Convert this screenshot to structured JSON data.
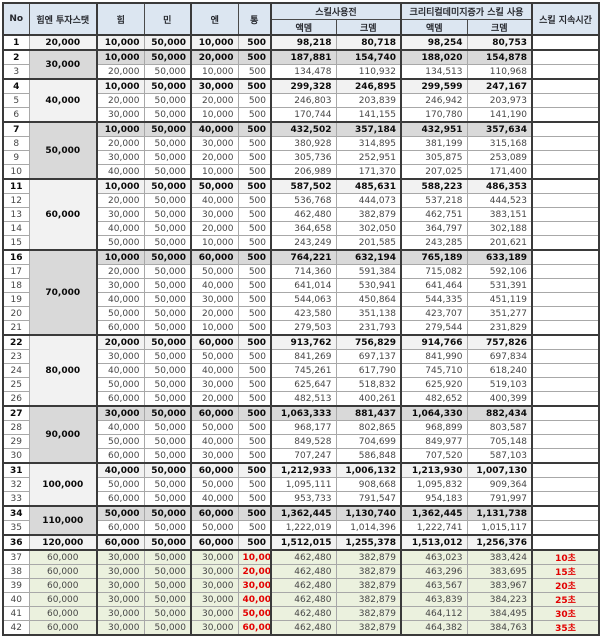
{
  "table": {
    "header": {
      "no": "No",
      "invest": "힘엔 투자스탯",
      "him": "힘",
      "min": "민",
      "en": "엔",
      "tong": "통",
      "before_skill": "스킬사용전",
      "crit_skill": "크리티컬데미지증가 스킬 사용",
      "duration": "스킬 지속시간",
      "atk_dmg_1": "액뎀",
      "crit_dmg_1": "크뎀",
      "atk_dmg_2": "액뎀",
      "crit_dmg_2": "크뎀"
    },
    "colors": {
      "header_bg": "#dce6f1",
      "group_gray_bg": "#d9d9d9",
      "group_light_bg": "#f2f2f2",
      "green_row_bg": "#ebf1de",
      "red_text": "#e30000",
      "border_dark": "#3a3a3a",
      "border_light": "#a8a8a8"
    },
    "rows": [
      {
        "no": "1",
        "inv": "20,000",
        "span": 1,
        "shade": "l",
        "bold": true,
        "top": true,
        "stats": [
          "10,000",
          "50,000",
          "10,000",
          "500"
        ],
        "vals": [
          "98,218",
          "80,718",
          "98,254",
          "80,753"
        ],
        "dur": ""
      },
      {
        "no": "2",
        "inv": "30,000",
        "span": 2,
        "shade": "g",
        "bold": true,
        "top": true,
        "stats": [
          "10,000",
          "50,000",
          "20,000",
          "500"
        ],
        "vals": [
          "187,881",
          "154,740",
          "188,020",
          "154,878"
        ],
        "dur": ""
      },
      {
        "no": "3",
        "stats": [
          "20,000",
          "50,000",
          "10,000",
          "500"
        ],
        "vals": [
          "134,478",
          "110,932",
          "134,513",
          "110,968"
        ],
        "dur": ""
      },
      {
        "no": "4",
        "inv": "40,000",
        "span": 3,
        "shade": "l",
        "bold": true,
        "top": true,
        "stats": [
          "10,000",
          "50,000",
          "30,000",
          "500"
        ],
        "vals": [
          "299,328",
          "246,895",
          "299,599",
          "247,167"
        ],
        "dur": ""
      },
      {
        "no": "5",
        "stats": [
          "20,000",
          "50,000",
          "20,000",
          "500"
        ],
        "vals": [
          "246,803",
          "203,839",
          "246,942",
          "203,973"
        ],
        "dur": ""
      },
      {
        "no": "6",
        "stats": [
          "30,000",
          "50,000",
          "10,000",
          "500"
        ],
        "vals": [
          "170,744",
          "141,155",
          "170,780",
          "141,190"
        ],
        "dur": ""
      },
      {
        "no": "7",
        "inv": "50,000",
        "span": 4,
        "shade": "g",
        "bold": true,
        "top": true,
        "stats": [
          "10,000",
          "50,000",
          "40,000",
          "500"
        ],
        "vals": [
          "432,502",
          "357,184",
          "432,951",
          "357,634"
        ],
        "dur": ""
      },
      {
        "no": "8",
        "stats": [
          "20,000",
          "50,000",
          "30,000",
          "500"
        ],
        "vals": [
          "380,928",
          "314,895",
          "381,199",
          "315,168"
        ],
        "dur": ""
      },
      {
        "no": "9",
        "stats": [
          "30,000",
          "50,000",
          "20,000",
          "500"
        ],
        "vals": [
          "305,736",
          "252,951",
          "305,875",
          "253,089"
        ],
        "dur": ""
      },
      {
        "no": "10",
        "stats": [
          "40,000",
          "50,000",
          "10,000",
          "500"
        ],
        "vals": [
          "206,989",
          "171,370",
          "207,025",
          "171,400"
        ],
        "dur": ""
      },
      {
        "no": "11",
        "inv": "60,000",
        "span": 5,
        "shade": "l",
        "bold": true,
        "top": true,
        "stats": [
          "10,000",
          "50,000",
          "50,000",
          "500"
        ],
        "vals": [
          "587,502",
          "485,631",
          "588,223",
          "486,353"
        ],
        "dur": ""
      },
      {
        "no": "12",
        "stats": [
          "20,000",
          "50,000",
          "40,000",
          "500"
        ],
        "vals": [
          "536,768",
          "444,073",
          "537,218",
          "444,523"
        ],
        "dur": ""
      },
      {
        "no": "13",
        "stats": [
          "30,000",
          "50,000",
          "30,000",
          "500"
        ],
        "vals": [
          "462,480",
          "382,879",
          "462,751",
          "383,151"
        ],
        "dur": ""
      },
      {
        "no": "14",
        "stats": [
          "40,000",
          "50,000",
          "20,000",
          "500"
        ],
        "vals": [
          "364,658",
          "302,050",
          "364,797",
          "302,188"
        ],
        "dur": ""
      },
      {
        "no": "15",
        "stats": [
          "50,000",
          "50,000",
          "10,000",
          "500"
        ],
        "vals": [
          "243,249",
          "201,585",
          "243,285",
          "201,621"
        ],
        "dur": ""
      },
      {
        "no": "16",
        "inv": "70,000",
        "span": 6,
        "shade": "g",
        "bold": true,
        "top": true,
        "stats": [
          "10,000",
          "50,000",
          "60,000",
          "500"
        ],
        "vals": [
          "764,221",
          "632,194",
          "765,189",
          "633,189"
        ],
        "dur": ""
      },
      {
        "no": "17",
        "stats": [
          "20,000",
          "50,000",
          "50,000",
          "500"
        ],
        "vals": [
          "714,360",
          "591,384",
          "715,082",
          "592,106"
        ],
        "dur": ""
      },
      {
        "no": "18",
        "stats": [
          "30,000",
          "50,000",
          "40,000",
          "500"
        ],
        "vals": [
          "641,014",
          "530,941",
          "641,464",
          "531,391"
        ],
        "dur": ""
      },
      {
        "no": "19",
        "stats": [
          "40,000",
          "50,000",
          "30,000",
          "500"
        ],
        "vals": [
          "544,063",
          "450,864",
          "544,335",
          "451,119"
        ],
        "dur": ""
      },
      {
        "no": "20",
        "stats": [
          "50,000",
          "50,000",
          "20,000",
          "500"
        ],
        "vals": [
          "423,580",
          "351,138",
          "423,707",
          "351,277"
        ],
        "dur": ""
      },
      {
        "no": "21",
        "stats": [
          "60,000",
          "50,000",
          "10,000",
          "500"
        ],
        "vals": [
          "279,503",
          "231,793",
          "279,544",
          "231,829"
        ],
        "dur": ""
      },
      {
        "no": "22",
        "inv": "80,000",
        "span": 5,
        "shade": "l",
        "bold": true,
        "top": true,
        "stats": [
          "20,000",
          "50,000",
          "60,000",
          "500"
        ],
        "vals": [
          "913,762",
          "756,829",
          "914,766",
          "757,826"
        ],
        "dur": ""
      },
      {
        "no": "23",
        "stats": [
          "30,000",
          "50,000",
          "50,000",
          "500"
        ],
        "vals": [
          "841,269",
          "697,137",
          "841,990",
          "697,834"
        ],
        "dur": ""
      },
      {
        "no": "24",
        "stats": [
          "40,000",
          "50,000",
          "40,000",
          "500"
        ],
        "vals": [
          "745,261",
          "617,790",
          "745,710",
          "618,240"
        ],
        "dur": ""
      },
      {
        "no": "25",
        "stats": [
          "50,000",
          "50,000",
          "30,000",
          "500"
        ],
        "vals": [
          "625,647",
          "518,832",
          "625,920",
          "519,103"
        ],
        "dur": ""
      },
      {
        "no": "26",
        "stats": [
          "60,000",
          "50,000",
          "20,000",
          "500"
        ],
        "vals": [
          "482,513",
          "400,261",
          "482,652",
          "400,399"
        ],
        "dur": ""
      },
      {
        "no": "27",
        "inv": "90,000",
        "span": 4,
        "shade": "g",
        "bold": true,
        "top": true,
        "stats": [
          "30,000",
          "50,000",
          "60,000",
          "500"
        ],
        "vals": [
          "1,063,333",
          "881,437",
          "1,064,330",
          "882,434"
        ],
        "dur": ""
      },
      {
        "no": "28",
        "stats": [
          "40,000",
          "50,000",
          "50,000",
          "500"
        ],
        "vals": [
          "968,177",
          "802,865",
          "968,899",
          "803,587"
        ],
        "dur": ""
      },
      {
        "no": "29",
        "stats": [
          "50,000",
          "50,000",
          "40,000",
          "500"
        ],
        "vals": [
          "849,528",
          "704,699",
          "849,977",
          "705,148"
        ],
        "dur": ""
      },
      {
        "no": "30",
        "stats": [
          "60,000",
          "50,000",
          "30,000",
          "500"
        ],
        "vals": [
          "707,247",
          "586,848",
          "707,520",
          "587,103"
        ],
        "dur": ""
      },
      {
        "no": "31",
        "inv": "100,000",
        "span": 3,
        "shade": "l",
        "bold": true,
        "top": true,
        "stats": [
          "40,000",
          "50,000",
          "60,000",
          "500"
        ],
        "vals": [
          "1,212,933",
          "1,006,132",
          "1,213,930",
          "1,007,130"
        ],
        "dur": ""
      },
      {
        "no": "32",
        "stats": [
          "50,000",
          "50,000",
          "50,000",
          "500"
        ],
        "vals": [
          "1,095,111",
          "908,668",
          "1,095,832",
          "909,364"
        ],
        "dur": ""
      },
      {
        "no": "33",
        "stats": [
          "60,000",
          "50,000",
          "40,000",
          "500"
        ],
        "vals": [
          "953,733",
          "791,547",
          "954,183",
          "791,997"
        ],
        "dur": ""
      },
      {
        "no": "34",
        "inv": "110,000",
        "span": 2,
        "shade": "g",
        "bold": true,
        "top": true,
        "stats": [
          "50,000",
          "50,000",
          "60,000",
          "500"
        ],
        "vals": [
          "1,362,445",
          "1,130,740",
          "1,362,445",
          "1,131,738"
        ],
        "dur": ""
      },
      {
        "no": "35",
        "stats": [
          "60,000",
          "50,000",
          "50,000",
          "500"
        ],
        "vals": [
          "1,222,019",
          "1,014,396",
          "1,222,741",
          "1,015,117"
        ],
        "dur": ""
      },
      {
        "no": "36",
        "inv": "120,000",
        "span": 1,
        "shade": "l",
        "bold": true,
        "top": true,
        "stats": [
          "60,000",
          "50,000",
          "60,000",
          "500"
        ],
        "vals": [
          "1,512,015",
          "1,255,378",
          "1,513,012",
          "1,256,376"
        ],
        "dur": ""
      },
      {
        "no": "37",
        "inv": "60,000",
        "span": 1,
        "shade": "green",
        "top": true,
        "redTong": true,
        "stats": [
          "30,000",
          "50,000",
          "30,000",
          "10,000"
        ],
        "vals": [
          "462,480",
          "382,879",
          "463,023",
          "383,424"
        ],
        "dur": "10초"
      },
      {
        "no": "38",
        "inv": "60,000",
        "span": 1,
        "shade": "green",
        "redTong": true,
        "stats": [
          "30,000",
          "50,000",
          "30,000",
          "20,000"
        ],
        "vals": [
          "462,480",
          "382,879",
          "463,296",
          "383,695"
        ],
        "dur": "15초"
      },
      {
        "no": "39",
        "inv": "60,000",
        "span": 1,
        "shade": "green",
        "redTong": true,
        "stats": [
          "30,000",
          "50,000",
          "30,000",
          "30,000"
        ],
        "vals": [
          "462,480",
          "382,879",
          "463,567",
          "383,967"
        ],
        "dur": "20초"
      },
      {
        "no": "40",
        "inv": "60,000",
        "span": 1,
        "shade": "green",
        "redTong": true,
        "stats": [
          "30,000",
          "50,000",
          "30,000",
          "40,000"
        ],
        "vals": [
          "462,480",
          "382,879",
          "463,839",
          "384,223"
        ],
        "dur": "25초"
      },
      {
        "no": "41",
        "inv": "60,000",
        "span": 1,
        "shade": "green",
        "redTong": true,
        "stats": [
          "30,000",
          "50,000",
          "30,000",
          "50,000"
        ],
        "vals": [
          "462,480",
          "382,879",
          "464,112",
          "384,495"
        ],
        "dur": "30초"
      },
      {
        "no": "42",
        "inv": "60,000",
        "span": 1,
        "shade": "green",
        "redTong": true,
        "stats": [
          "30,000",
          "50,000",
          "30,000",
          "60,000"
        ],
        "vals": [
          "462,480",
          "382,879",
          "464,382",
          "384,763"
        ],
        "dur": "35초"
      }
    ]
  }
}
